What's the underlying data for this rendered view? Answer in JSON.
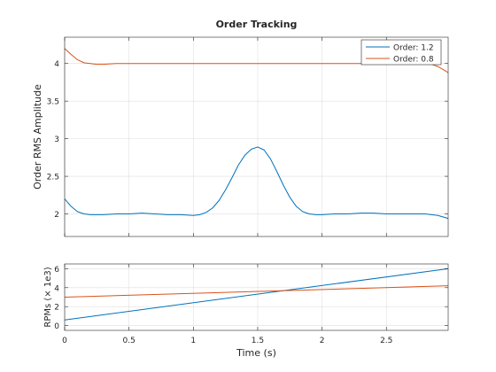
{
  "chart_data": [
    {
      "type": "line",
      "title": "Order Tracking",
      "xlabel": "",
      "ylabel": "Order RMS Amplitude",
      "xlim": [
        0,
        2.98
      ],
      "ylim": [
        1.7,
        4.35
      ],
      "xticks": [
        0,
        0.5,
        1,
        1.5,
        2,
        2.5
      ],
      "yticks": [
        2,
        2.5,
        3,
        3.5,
        4
      ],
      "ytick_labels": [
        "2",
        "2.5",
        "3",
        "3.5",
        "4"
      ],
      "grid": true,
      "legend_position": "top-right",
      "colors": {
        "order_1_2": "#0072bd",
        "order_0_8": "#d95319"
      },
      "series": [
        {
          "name": "Order: 1.2",
          "color": "#0072bd",
          "x": [
            0,
            0.05,
            0.1,
            0.15,
            0.2,
            0.3,
            0.4,
            0.5,
            0.6,
            0.7,
            0.8,
            0.9,
            1.0,
            1.05,
            1.1,
            1.15,
            1.2,
            1.25,
            1.3,
            1.35,
            1.4,
            1.45,
            1.5,
            1.55,
            1.6,
            1.65,
            1.7,
            1.75,
            1.8,
            1.85,
            1.9,
            1.95,
            2.0,
            2.1,
            2.2,
            2.3,
            2.4,
            2.5,
            2.6,
            2.7,
            2.8,
            2.9,
            2.98
          ],
          "y": [
            2.2,
            2.1,
            2.03,
            2.0,
            1.99,
            1.99,
            2.0,
            2.0,
            2.01,
            2.0,
            1.99,
            1.99,
            1.98,
            1.99,
            2.02,
            2.08,
            2.18,
            2.32,
            2.48,
            2.65,
            2.78,
            2.86,
            2.89,
            2.85,
            2.73,
            2.56,
            2.38,
            2.22,
            2.1,
            2.03,
            2.0,
            1.99,
            1.99,
            2.0,
            2.0,
            2.01,
            2.01,
            2.0,
            2.0,
            2.0,
            2.0,
            1.98,
            1.94
          ]
        },
        {
          "name": "Order: 0.8",
          "color": "#d95319",
          "x": [
            0,
            0.05,
            0.1,
            0.15,
            0.2,
            0.25,
            0.3,
            0.4,
            0.6,
            0.8,
            1.0,
            1.2,
            1.4,
            1.6,
            1.8,
            2.0,
            2.2,
            2.4,
            2.6,
            2.8,
            2.85,
            2.9,
            2.95,
            2.98
          ],
          "y": [
            4.2,
            4.12,
            4.05,
            4.01,
            4.0,
            3.99,
            3.99,
            4.0,
            4.0,
            4.0,
            4.0,
            4.0,
            4.0,
            4.0,
            4.0,
            4.0,
            4.0,
            4.0,
            4.0,
            4.0,
            3.99,
            3.96,
            3.91,
            3.88
          ]
        }
      ]
    },
    {
      "type": "line",
      "title": "",
      "xlabel": "Time (s)",
      "ylabel": "RPMs (× 1e3)",
      "xlim": [
        0,
        2.98
      ],
      "ylim": [
        -0.5,
        6.5
      ],
      "xticks": [
        0,
        0.5,
        1,
        1.5,
        2,
        2.5
      ],
      "xtick_labels": [
        "0",
        "0.5",
        "1",
        "1.5",
        "2",
        "2.5"
      ],
      "yticks": [
        0,
        2,
        4,
        6
      ],
      "ytick_labels": [
        "0",
        "2",
        "4",
        "6"
      ],
      "grid": true,
      "series": [
        {
          "color": "#0072bd",
          "x": [
            0,
            2.98
          ],
          "y": [
            0.6,
            6.0
          ]
        },
        {
          "color": "#d95319",
          "x": [
            0,
            2.98
          ],
          "y": [
            3.0,
            4.2
          ]
        }
      ]
    }
  ]
}
